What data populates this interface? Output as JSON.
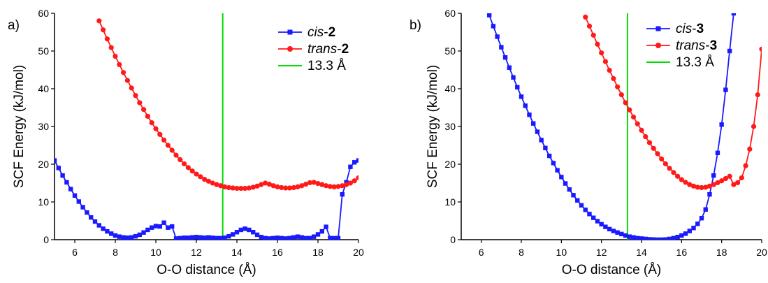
{
  "chart_data": [
    {
      "type": "line",
      "panel_label": "a)",
      "xlabel": "O-O distance (Å)",
      "ylabel": "SCF Energy (kJ/mol)",
      "xlim": [
        5,
        20
      ],
      "ylim": [
        0,
        60
      ],
      "xticks": [
        6,
        8,
        10,
        12,
        14,
        16,
        18,
        20
      ],
      "yticks": [
        0,
        10,
        20,
        30,
        40,
        50,
        60
      ],
      "grid": false,
      "legend_position": "top-right",
      "vline": {
        "x": 13.3,
        "label": "13.3 Å",
        "color": "#00dd00"
      },
      "series": [
        {
          "name": "cis-2",
          "legend_prefix": "cis",
          "legend_suffix": "2",
          "color": "#1a1aff",
          "marker": "square",
          "x": [
            5.0,
            5.2,
            5.4,
            5.6,
            5.8,
            6.0,
            6.2,
            6.4,
            6.6,
            6.8,
            7.0,
            7.2,
            7.4,
            7.6,
            7.8,
            8.0,
            8.2,
            8.4,
            8.6,
            8.8,
            9.0,
            9.2,
            9.4,
            9.6,
            9.8,
            10.0,
            10.2,
            10.4,
            10.6,
            10.8,
            11.0,
            11.2,
            11.4,
            11.6,
            11.8,
            12.0,
            12.2,
            12.4,
            12.6,
            12.8,
            13.0,
            13.2,
            13.4,
            13.6,
            13.8,
            14.0,
            14.2,
            14.4,
            14.6,
            14.8,
            15.0,
            15.2,
            15.4,
            15.6,
            15.8,
            16.0,
            16.2,
            16.4,
            16.6,
            16.8,
            17.0,
            17.2,
            17.4,
            17.6,
            17.8,
            18.0,
            18.2,
            18.4,
            18.6,
            18.8,
            19.0,
            19.2,
            19.4,
            19.6,
            19.8,
            20.0
          ],
          "y": [
            21.0,
            19.0,
            17.0,
            15.2,
            13.4,
            11.7,
            10.1,
            8.6,
            7.2,
            5.9,
            4.8,
            3.8,
            2.9,
            2.2,
            1.6,
            1.1,
            0.8,
            0.6,
            0.5,
            0.6,
            0.9,
            1.3,
            1.9,
            2.6,
            3.2,
            3.6,
            3.5,
            4.5,
            3.2,
            3.5,
            0.3,
            0.4,
            0.5,
            0.5,
            0.6,
            0.7,
            0.6,
            0.5,
            0.6,
            0.5,
            0.4,
            0.4,
            0.5,
            0.9,
            1.4,
            2.0,
            2.6,
            2.9,
            2.6,
            2.0,
            1.3,
            0.7,
            0.4,
            0.3,
            0.4,
            0.5,
            0.4,
            0.3,
            0.4,
            0.6,
            0.8,
            0.6,
            0.4,
            0.4,
            0.8,
            1.4,
            2.2,
            3.4,
            0.4,
            0.4,
            0.4,
            12.0,
            15.2,
            19.3,
            20.5,
            21.0
          ],
          "x_plot_end": 20.0
        },
        {
          "name": "trans-2",
          "legend_prefix": "trans",
          "legend_suffix": "2",
          "color": "#ff1a1a",
          "marker": "circle",
          "x": [
            7.2,
            7.4,
            7.6,
            7.8,
            8.0,
            8.2,
            8.4,
            8.6,
            8.8,
            9.0,
            9.2,
            9.4,
            9.6,
            9.8,
            10.0,
            10.2,
            10.4,
            10.6,
            10.8,
            11.0,
            11.2,
            11.4,
            11.6,
            11.8,
            12.0,
            12.2,
            12.4,
            12.6,
            12.8,
            13.0,
            13.2,
            13.4,
            13.6,
            13.8,
            14.0,
            14.2,
            14.4,
            14.6,
            14.8,
            15.0,
            15.2,
            15.4,
            15.6,
            15.8,
            16.0,
            16.2,
            16.4,
            16.6,
            16.8,
            17.0,
            17.2,
            17.4,
            17.6,
            17.8,
            18.0,
            18.2,
            18.4,
            18.6,
            18.8,
            19.0,
            19.2,
            19.4,
            19.6,
            19.8,
            20.0
          ],
          "y": [
            58.0,
            55.6,
            53.2,
            50.9,
            48.6,
            46.4,
            44.3,
            42.2,
            40.2,
            38.2,
            36.3,
            34.5,
            32.7,
            31.0,
            29.4,
            27.9,
            26.4,
            25.0,
            23.7,
            22.4,
            21.2,
            20.1,
            19.1,
            18.2,
            17.4,
            16.7,
            16.0,
            15.5,
            15.0,
            14.6,
            14.3,
            14.0,
            13.8,
            13.7,
            13.6,
            13.6,
            13.6,
            13.7,
            13.9,
            14.2,
            14.6,
            15.0,
            14.7,
            14.3,
            14.0,
            13.8,
            13.7,
            13.7,
            13.8,
            14.0,
            14.3,
            14.7,
            15.1,
            15.2,
            14.9,
            14.6,
            14.3,
            14.1,
            14.0,
            14.1,
            14.3,
            14.6,
            15.0,
            15.6,
            16.4
          ]
        }
      ]
    },
    {
      "type": "line",
      "panel_label": "b)",
      "xlabel": "O-O distance (Å)",
      "ylabel": "SCF Energy (kJ/mol)",
      "xlim": [
        5,
        20
      ],
      "ylim": [
        0,
        60
      ],
      "xticks": [
        6,
        8,
        10,
        12,
        14,
        16,
        18,
        20
      ],
      "yticks": [
        0,
        10,
        20,
        30,
        40,
        50,
        60
      ],
      "grid": false,
      "legend_position": "top-right",
      "vline": {
        "x": 13.3,
        "label": "13.3 Å",
        "color": "#00dd00"
      },
      "series": [
        {
          "name": "cis-3",
          "legend_prefix": "cis",
          "legend_suffix": "3",
          "color": "#1a1aff",
          "marker": "square",
          "x": [
            6.4,
            6.6,
            6.8,
            7.0,
            7.2,
            7.4,
            7.6,
            7.8,
            8.0,
            8.2,
            8.4,
            8.6,
            8.8,
            9.0,
            9.2,
            9.4,
            9.6,
            9.8,
            10.0,
            10.2,
            10.4,
            10.6,
            10.8,
            11.0,
            11.2,
            11.4,
            11.6,
            11.8,
            12.0,
            12.2,
            12.4,
            12.6,
            12.8,
            13.0,
            13.2,
            13.4,
            13.6,
            13.8,
            14.0,
            14.2,
            14.4,
            14.6,
            14.8,
            15.0,
            15.2,
            15.4,
            15.6,
            15.8,
            16.0,
            16.2,
            16.4,
            16.6,
            16.8,
            17.0,
            17.2,
            17.4,
            17.6,
            17.8,
            18.0,
            18.2,
            18.4,
            18.6
          ],
          "y": [
            59.5,
            56.6,
            53.8,
            51.0,
            48.3,
            45.6,
            43.0,
            40.4,
            37.9,
            35.5,
            33.1,
            30.8,
            28.6,
            26.4,
            24.3,
            22.2,
            20.3,
            18.4,
            16.6,
            14.9,
            13.3,
            11.8,
            10.4,
            9.1,
            7.9,
            6.8,
            5.8,
            4.9,
            4.1,
            3.4,
            2.8,
            2.3,
            1.9,
            1.5,
            1.1,
            0.8,
            0.6,
            0.4,
            0.3,
            0.2,
            0.1,
            0.05,
            0.0,
            0.0,
            0.05,
            0.2,
            0.4,
            0.7,
            1.1,
            1.6,
            2.3,
            3.1,
            4.2,
            5.7,
            8.0,
            12.0,
            17.0,
            23.0,
            30.5,
            39.7,
            50.0,
            60.0
          ],
          "x_plot_end": 18.9
        },
        {
          "name": "trans-3",
          "legend_prefix": "trans",
          "legend_suffix": "3",
          "color": "#ff1a1a",
          "marker": "circle",
          "x": [
            11.2,
            11.4,
            11.6,
            11.8,
            12.0,
            12.2,
            12.4,
            12.6,
            12.8,
            13.0,
            13.2,
            13.4,
            13.6,
            13.8,
            14.0,
            14.2,
            14.4,
            14.6,
            14.8,
            15.0,
            15.2,
            15.4,
            15.6,
            15.8,
            16.0,
            16.2,
            16.4,
            16.6,
            16.8,
            17.0,
            17.2,
            17.4,
            17.6,
            17.8,
            18.0,
            18.2,
            18.4,
            18.6,
            18.8,
            19.0,
            19.2,
            19.4,
            19.6,
            19.8,
            20.0
          ],
          "y": [
            59.0,
            56.6,
            54.2,
            51.8,
            49.5,
            47.2,
            44.9,
            42.7,
            40.5,
            38.4,
            36.3,
            34.4,
            32.5,
            30.7,
            29.0,
            27.3,
            25.7,
            24.2,
            22.8,
            21.4,
            20.1,
            18.9,
            17.8,
            16.8,
            15.9,
            15.2,
            14.6,
            14.2,
            13.9,
            13.8,
            13.9,
            14.2,
            14.6,
            15.1,
            15.6,
            16.2,
            16.8,
            14.6,
            15.1,
            16.4,
            19.6,
            24.0,
            30.0,
            38.4,
            50.5
          ]
        }
      ]
    }
  ]
}
